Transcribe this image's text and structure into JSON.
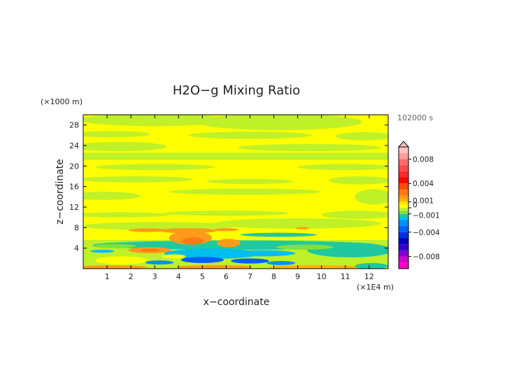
{
  "chart_data": {
    "type": "heatmap",
    "title": "H2O−g Mixing Ratio",
    "xlabel": "x−coordinate",
    "ylabel": "z−coordinate",
    "x_unit": "(×1E4 m)",
    "y_unit": "(×1000 m)",
    "time_label": "102000 s",
    "xlim": [
      0,
      12.8
    ],
    "ylim": [
      0,
      30
    ],
    "x_ticks": [
      {
        "value": 1,
        "label": "1"
      },
      {
        "value": 2,
        "label": "2"
      },
      {
        "value": 3,
        "label": "3"
      },
      {
        "value": 4,
        "label": "4"
      },
      {
        "value": 5,
        "label": "5"
      },
      {
        "value": 6,
        "label": "6"
      },
      {
        "value": 7,
        "label": "7"
      },
      {
        "value": 8,
        "label": "8"
      },
      {
        "value": 9,
        "label": "9"
      },
      {
        "value": 10,
        "label": "10"
      },
      {
        "value": 11,
        "label": "11"
      },
      {
        "value": 12,
        "label": "12"
      }
    ],
    "y_ticks": [
      {
        "value": 4,
        "label": "4"
      },
      {
        "value": 8,
        "label": "8"
      },
      {
        "value": 12,
        "label": "12"
      },
      {
        "value": 16,
        "label": "16"
      },
      {
        "value": 20,
        "label": "20"
      },
      {
        "value": 24,
        "label": "24"
      },
      {
        "value": 28,
        "label": "28"
      }
    ],
    "colorbar": {
      "range": [
        -0.01,
        0.01
      ],
      "ticks": [
        {
          "value": 0.008,
          "label": "0.008"
        },
        {
          "value": 0.004,
          "label": "0.004"
        },
        {
          "value": 0.001,
          "label": "0.001"
        },
        {
          "value": 0,
          "label": "0"
        },
        {
          "value": -0.001,
          "label": "−0.001"
        },
        {
          "value": -0.004,
          "label": "−0.004"
        },
        {
          "value": -0.008,
          "label": "−0.008"
        }
      ],
      "levels": [
        {
          "from": 0.009,
          "to": 0.01,
          "color": "#ffc0c0"
        },
        {
          "from": 0.008,
          "to": 0.009,
          "color": "#ff9c9c"
        },
        {
          "from": 0.007,
          "to": 0.008,
          "color": "#ff6a6a"
        },
        {
          "from": 0.006,
          "to": 0.007,
          "color": "#ff4848"
        },
        {
          "from": 0.005,
          "to": 0.006,
          "color": "#ff2a2a"
        },
        {
          "from": 0.004,
          "to": 0.005,
          "color": "#ff0000"
        },
        {
          "from": 0.003,
          "to": 0.004,
          "color": "#ff4a00"
        },
        {
          "from": 0.002,
          "to": 0.003,
          "color": "#ff7a10"
        },
        {
          "from": 0.0015,
          "to": 0.002,
          "color": "#ff9a1a"
        },
        {
          "from": 0.001,
          "to": 0.0015,
          "color": "#ffb400"
        },
        {
          "from": 0.0005,
          "to": 0.001,
          "color": "#ffe000"
        },
        {
          "from": 0,
          "to": 0.0005,
          "color": "#ffff00"
        },
        {
          "from": -0.0005,
          "to": 0,
          "color": "#c0f028"
        },
        {
          "from": -0.001,
          "to": -0.0005,
          "color": "#80e040"
        },
        {
          "from": -0.0015,
          "to": -0.001,
          "color": "#20c8a0"
        },
        {
          "from": -0.002,
          "to": -0.0015,
          "color": "#00bff0"
        },
        {
          "from": -0.003,
          "to": -0.002,
          "color": "#0090ff"
        },
        {
          "from": -0.004,
          "to": -0.003,
          "color": "#0060ff"
        },
        {
          "from": -0.005,
          "to": -0.004,
          "color": "#0030e0"
        },
        {
          "from": -0.006,
          "to": -0.005,
          "color": "#0000c0"
        },
        {
          "from": -0.007,
          "to": -0.006,
          "color": "#3000c8"
        },
        {
          "from": -0.008,
          "to": -0.007,
          "color": "#8000d0"
        },
        {
          "from": -0.009,
          "to": -0.008,
          "color": "#d000c8"
        },
        {
          "from": -0.01,
          "to": -0.009,
          "color": "#ff00c0"
        }
      ]
    },
    "regions": [
      {
        "shape": "rect",
        "x0": 0,
        "x1": 12.8,
        "y0": 0,
        "y1": 30,
        "color": "#ffff00"
      },
      {
        "shape": "ellipse",
        "cx": 3.0,
        "cy": 29.0,
        "rx": 3.2,
        "ry": 1.2,
        "color": "#c0f028"
      },
      {
        "shape": "ellipse",
        "cx": 8.2,
        "cy": 28.6,
        "rx": 3.5,
        "ry": 1.6,
        "color": "#c0f028"
      },
      {
        "shape": "ellipse",
        "cx": 1.2,
        "cy": 26.2,
        "rx": 1.6,
        "ry": 0.6,
        "color": "#c0f028"
      },
      {
        "shape": "ellipse",
        "cx": 7.0,
        "cy": 26.0,
        "rx": 2.6,
        "ry": 0.7,
        "color": "#c0f028"
      },
      {
        "shape": "ellipse",
        "cx": 11.8,
        "cy": 25.8,
        "rx": 1.2,
        "ry": 0.8,
        "color": "#c0f028"
      },
      {
        "shape": "ellipse",
        "cx": 1.5,
        "cy": 23.8,
        "rx": 2.0,
        "ry": 0.9,
        "color": "#c0f028"
      },
      {
        "shape": "ellipse",
        "cx": 9.5,
        "cy": 23.6,
        "rx": 3.0,
        "ry": 0.7,
        "color": "#c0f028"
      },
      {
        "shape": "rect",
        "x0": 0,
        "x1": 12.8,
        "y0": 21.2,
        "y1": 22.6,
        "color": "#c0f028"
      },
      {
        "shape": "ellipse",
        "cx": 3.0,
        "cy": 19.8,
        "rx": 2.5,
        "ry": 0.6,
        "color": "#c0f028"
      },
      {
        "shape": "ellipse",
        "cx": 11.0,
        "cy": 19.8,
        "rx": 2.0,
        "ry": 0.6,
        "color": "#c0f028"
      },
      {
        "shape": "ellipse",
        "cx": 2.2,
        "cy": 17.4,
        "rx": 2.4,
        "ry": 0.6,
        "color": "#c0f028"
      },
      {
        "shape": "ellipse",
        "cx": 7.0,
        "cy": 17.0,
        "rx": 1.8,
        "ry": 0.5,
        "color": "#c0f028"
      },
      {
        "shape": "ellipse",
        "cx": 11.6,
        "cy": 17.2,
        "rx": 1.3,
        "ry": 0.8,
        "color": "#c0f028"
      },
      {
        "shape": "ellipse",
        "cx": 0.8,
        "cy": 14.2,
        "rx": 1.6,
        "ry": 0.8,
        "color": "#c0f028"
      },
      {
        "shape": "ellipse",
        "cx": 6.8,
        "cy": 15.0,
        "rx": 3.2,
        "ry": 0.6,
        "color": "#c0f028"
      },
      {
        "shape": "ellipse",
        "cx": 12.2,
        "cy": 14.0,
        "rx": 0.8,
        "ry": 1.5,
        "color": "#c0f028"
      },
      {
        "shape": "ellipse",
        "cx": 1.6,
        "cy": 10.5,
        "rx": 2.0,
        "ry": 0.5,
        "color": "#c0f028"
      },
      {
        "shape": "ellipse",
        "cx": 6.0,
        "cy": 10.8,
        "rx": 2.6,
        "ry": 0.5,
        "color": "#c0f028"
      },
      {
        "shape": "ellipse",
        "cx": 11.5,
        "cy": 10.5,
        "rx": 1.5,
        "ry": 0.8,
        "color": "#c0f028"
      },
      {
        "shape": "ellipse",
        "cx": 3.2,
        "cy": 8.3,
        "rx": 3.2,
        "ry": 0.8,
        "color": "#c0f028"
      },
      {
        "shape": "ellipse",
        "cx": 9.0,
        "cy": 8.8,
        "rx": 3.5,
        "ry": 1.0,
        "color": "#c0f028"
      },
      {
        "shape": "ellipse",
        "cx": 4.4,
        "cy": 7.4,
        "rx": 1.2,
        "ry": 0.5,
        "color": "#ff9a1a"
      },
      {
        "shape": "ellipse",
        "cx": 2.7,
        "cy": 7.5,
        "rx": 0.8,
        "ry": 0.35,
        "color": "#ff9a1a"
      },
      {
        "shape": "ellipse",
        "cx": 6.0,
        "cy": 7.6,
        "rx": 0.5,
        "ry": 0.3,
        "color": "#ff9a1a"
      },
      {
        "shape": "ellipse",
        "cx": 9.2,
        "cy": 7.9,
        "rx": 0.3,
        "ry": 0.2,
        "color": "#ff9a1a"
      },
      {
        "shape": "rect",
        "x0": 0,
        "x1": 12.8,
        "y0": 0,
        "y1": 5.6,
        "color": "#c0f028"
      },
      {
        "shape": "ellipse",
        "cx": 6.4,
        "cy": 4.6,
        "rx": 6.0,
        "ry": 0.9,
        "color": "#20c8a0"
      },
      {
        "shape": "ellipse",
        "cx": 11.2,
        "cy": 3.6,
        "rx": 1.8,
        "ry": 1.4,
        "color": "#20c8a0"
      },
      {
        "shape": "ellipse",
        "cx": 8.2,
        "cy": 6.6,
        "rx": 1.6,
        "ry": 0.4,
        "color": "#20c8a0"
      },
      {
        "shape": "ellipse",
        "cx": 4.5,
        "cy": 6.0,
        "rx": 0.9,
        "ry": 1.3,
        "color": "#ff9a1a"
      },
      {
        "shape": "ellipse",
        "cx": 4.6,
        "cy": 5.4,
        "rx": 0.45,
        "ry": 0.7,
        "color": "#ff7a10"
      },
      {
        "shape": "ellipse",
        "cx": 6.1,
        "cy": 5.0,
        "rx": 0.5,
        "ry": 0.8,
        "color": "#ff9a1a"
      },
      {
        "shape": "ellipse",
        "cx": 2.8,
        "cy": 3.6,
        "rx": 0.9,
        "ry": 0.6,
        "color": "#ff9a1a"
      },
      {
        "shape": "ellipse",
        "cx": 2.8,
        "cy": 3.6,
        "rx": 0.4,
        "ry": 0.3,
        "color": "#ff7a10"
      },
      {
        "shape": "ellipse",
        "cx": 1.3,
        "cy": 4.4,
        "rx": 0.9,
        "ry": 0.4,
        "color": "#80e040"
      },
      {
        "shape": "ellipse",
        "cx": 9.3,
        "cy": 4.2,
        "rx": 1.2,
        "ry": 0.5,
        "color": "#80e040"
      },
      {
        "shape": "ellipse",
        "cx": 5.4,
        "cy": 2.9,
        "rx": 2.0,
        "ry": 1.0,
        "color": "#00bff0"
      },
      {
        "shape": "ellipse",
        "cx": 7.5,
        "cy": 3.0,
        "rx": 1.4,
        "ry": 0.6,
        "color": "#00bff0"
      },
      {
        "shape": "ellipse",
        "cx": 0.8,
        "cy": 3.4,
        "rx": 0.5,
        "ry": 0.3,
        "color": "#00bff0"
      },
      {
        "shape": "ellipse",
        "cx": 3.8,
        "cy": 2.4,
        "rx": 0.5,
        "ry": 0.4,
        "color": "#ffff00"
      },
      {
        "shape": "ellipse",
        "cx": 1.6,
        "cy": 1.6,
        "rx": 1.1,
        "ry": 0.8,
        "color": "#ffff00"
      },
      {
        "shape": "ellipse",
        "cx": 5.0,
        "cy": 1.7,
        "rx": 0.9,
        "ry": 0.6,
        "color": "#0060ff"
      },
      {
        "shape": "ellipse",
        "cx": 7.0,
        "cy": 1.5,
        "rx": 0.8,
        "ry": 0.5,
        "color": "#0060ff"
      },
      {
        "shape": "ellipse",
        "cx": 3.2,
        "cy": 1.2,
        "rx": 0.6,
        "ry": 0.4,
        "color": "#0090ff"
      },
      {
        "shape": "ellipse",
        "cx": 8.3,
        "cy": 1.1,
        "rx": 0.6,
        "ry": 0.4,
        "color": "#0090ff"
      },
      {
        "shape": "ellipse",
        "cx": 1.2,
        "cy": 0.3,
        "rx": 1.5,
        "ry": 0.35,
        "color": "#ff9a1a"
      },
      {
        "shape": "ellipse",
        "cx": 5.5,
        "cy": 0.3,
        "rx": 1.6,
        "ry": 0.4,
        "color": "#ff9a1a"
      },
      {
        "shape": "ellipse",
        "cx": 9.8,
        "cy": 0.3,
        "rx": 2.0,
        "ry": 0.4,
        "color": "#ffb400"
      },
      {
        "shape": "ellipse",
        "cx": 12.1,
        "cy": 0.5,
        "rx": 0.7,
        "ry": 0.6,
        "color": "#20c8a0"
      }
    ]
  }
}
